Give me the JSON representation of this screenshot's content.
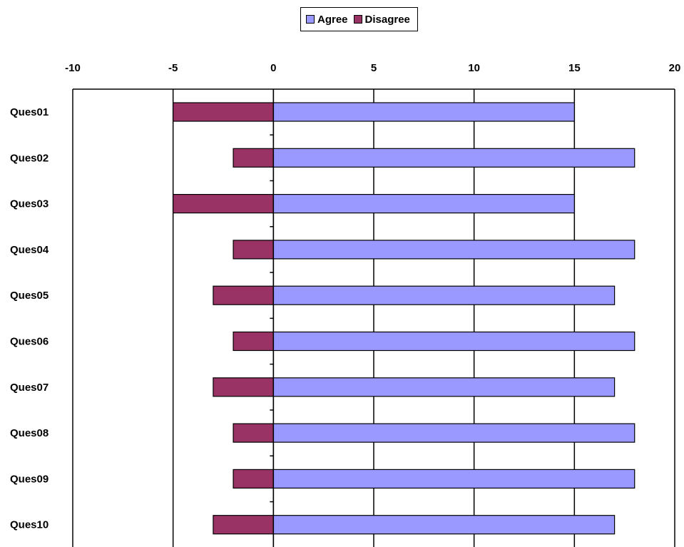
{
  "legend": {
    "agree_label": "Agree",
    "disagree_label": "Disagree"
  },
  "colors": {
    "agree": "#9999ff",
    "disagree": "#993366",
    "axis": "#000000"
  },
  "chart_data": {
    "type": "bar",
    "orientation": "horizontal",
    "stacked_diverging": true,
    "categories": [
      "Ques01",
      "Ques02",
      "Ques03",
      "Ques04",
      "Ques05",
      "Ques06",
      "Ques07",
      "Ques08",
      "Ques09",
      "Ques10"
    ],
    "series": [
      {
        "name": "Agree",
        "values": [
          15,
          18,
          15,
          18,
          17,
          18,
          17,
          18,
          18,
          17
        ]
      },
      {
        "name": "Disagree",
        "values": [
          -5,
          -2,
          -5,
          -2,
          -3,
          -2,
          -3,
          -2,
          -2,
          -3
        ]
      }
    ],
    "xticks": [
      "-10",
      "-5",
      "0",
      "5",
      "10",
      "15",
      "20"
    ],
    "xlim": [
      -10,
      20
    ],
    "x_axis_position": "top",
    "grid": true,
    "legend_position": "top-center"
  }
}
